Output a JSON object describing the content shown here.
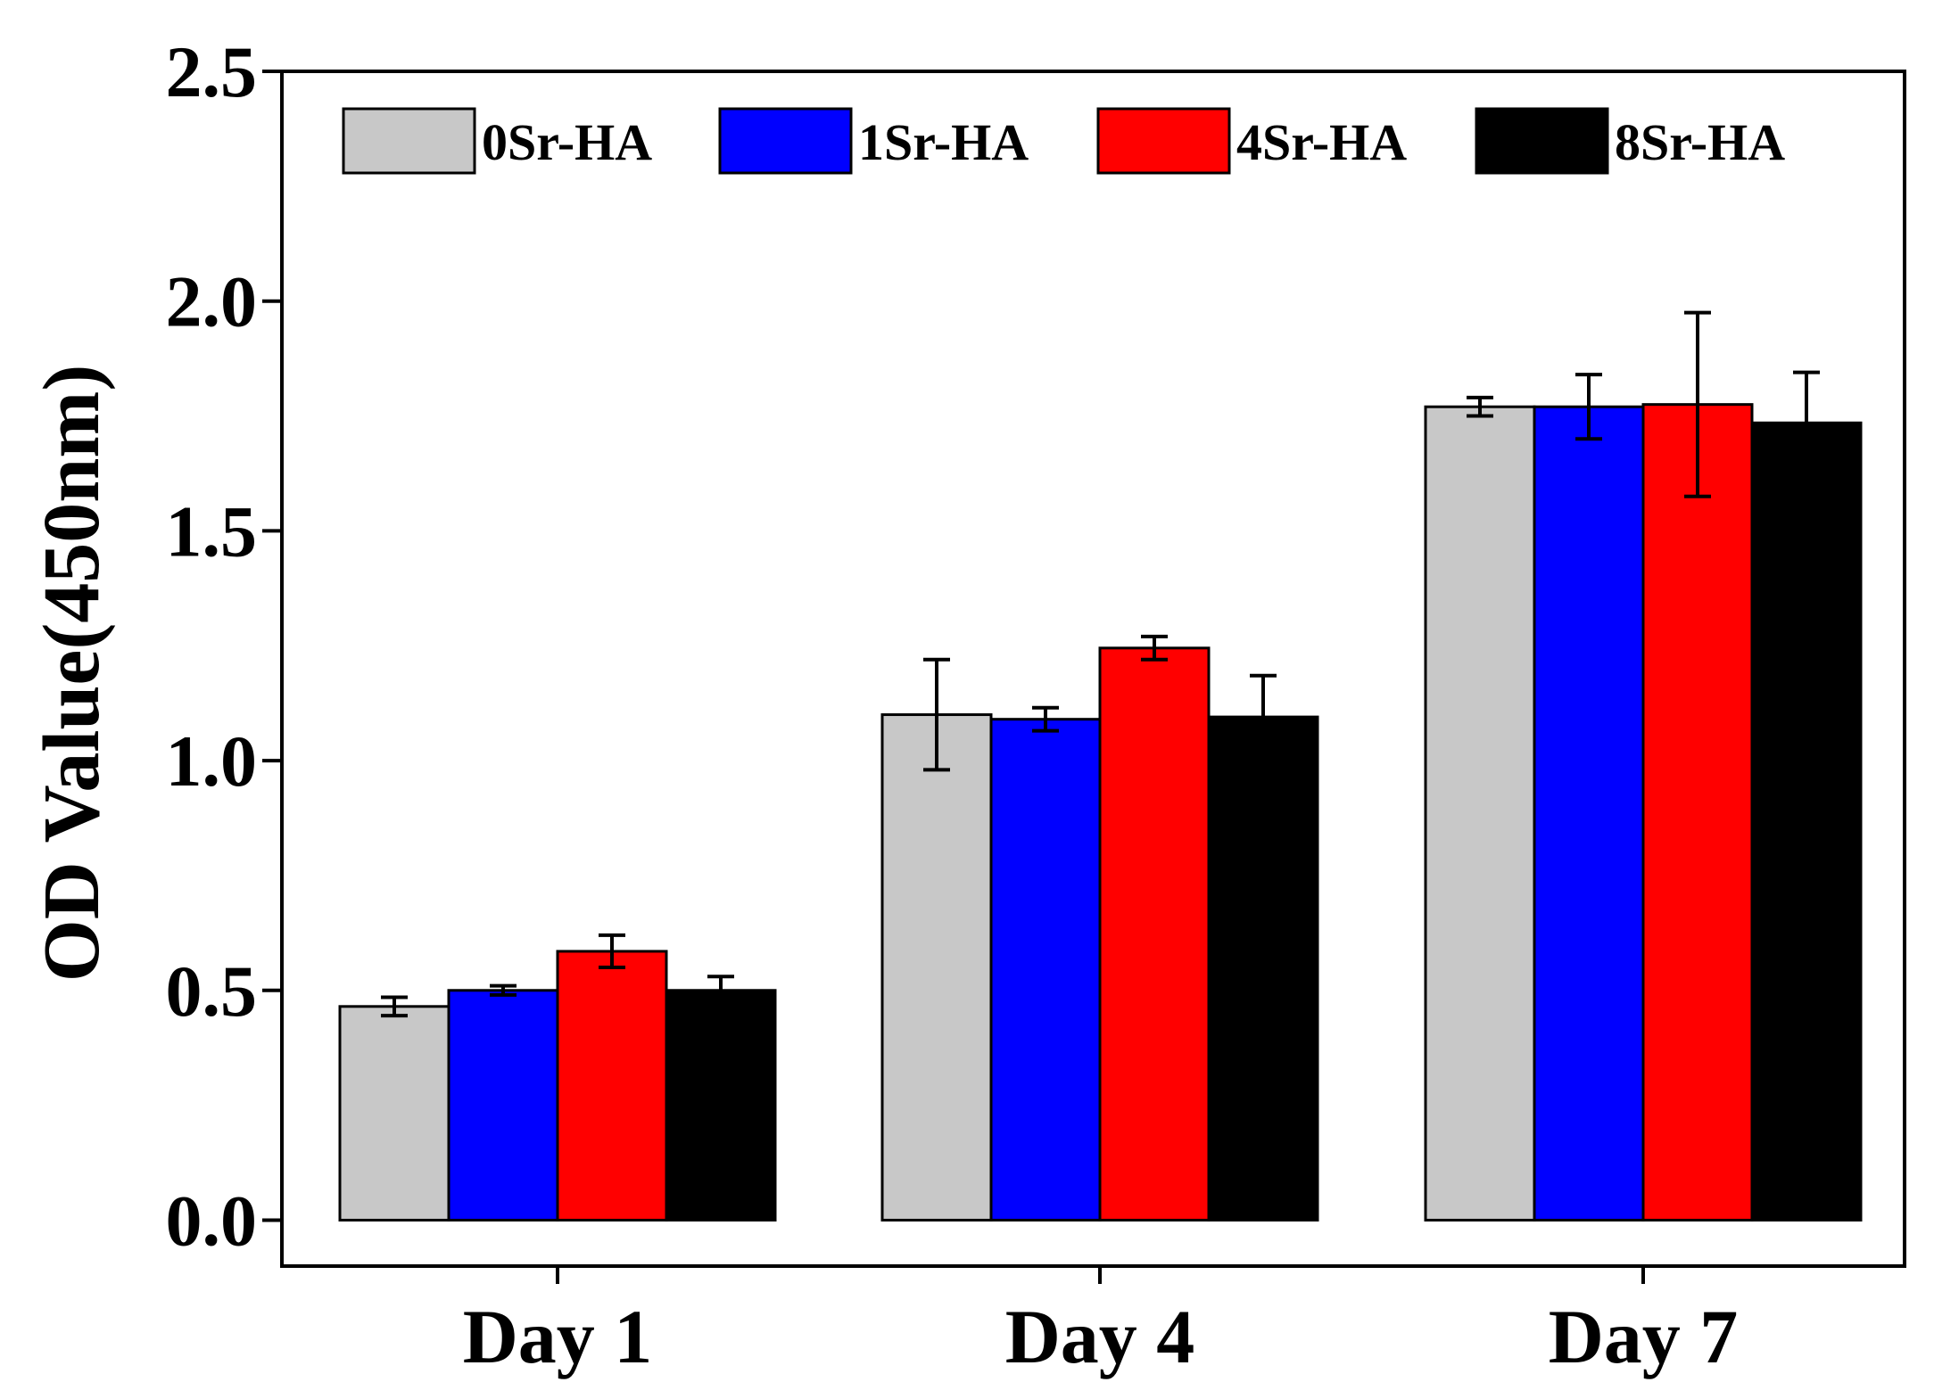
{
  "chart_data": {
    "type": "bar",
    "title": "",
    "xlabel": "",
    "ylabel": "OD Value(450nm)",
    "ylim": [
      -0.1,
      2.5
    ],
    "yticks": [
      "0.0",
      "0.5",
      "1.0",
      "1.5",
      "2.0",
      "2.5"
    ],
    "ytick_values": [
      0.0,
      0.5,
      1.0,
      1.5,
      2.0,
      2.5
    ],
    "categories": [
      "Day 1",
      "Day 4",
      "Day 7"
    ],
    "grid": false,
    "legend_position": "top",
    "series": [
      {
        "name": "0Sr-HA",
        "color": "#c8c8c8",
        "values": [
          0.465,
          1.1,
          1.77
        ],
        "errors": [
          0.02,
          0.12,
          0.02
        ]
      },
      {
        "name": "1Sr-HA",
        "color": "#0000ff",
        "values": [
          0.5,
          1.09,
          1.77
        ],
        "errors": [
          0.01,
          0.025,
          0.07
        ]
      },
      {
        "name": "4Sr-HA",
        "color": "#ff0000",
        "values": [
          0.585,
          1.245,
          1.775
        ],
        "errors": [
          0.035,
          0.025,
          0.2
        ]
      },
      {
        "name": "8Sr-HA",
        "color": "#000000",
        "values": [
          0.5,
          1.095,
          1.735
        ],
        "errors": [
          0.03,
          0.09,
          0.11
        ]
      }
    ]
  }
}
